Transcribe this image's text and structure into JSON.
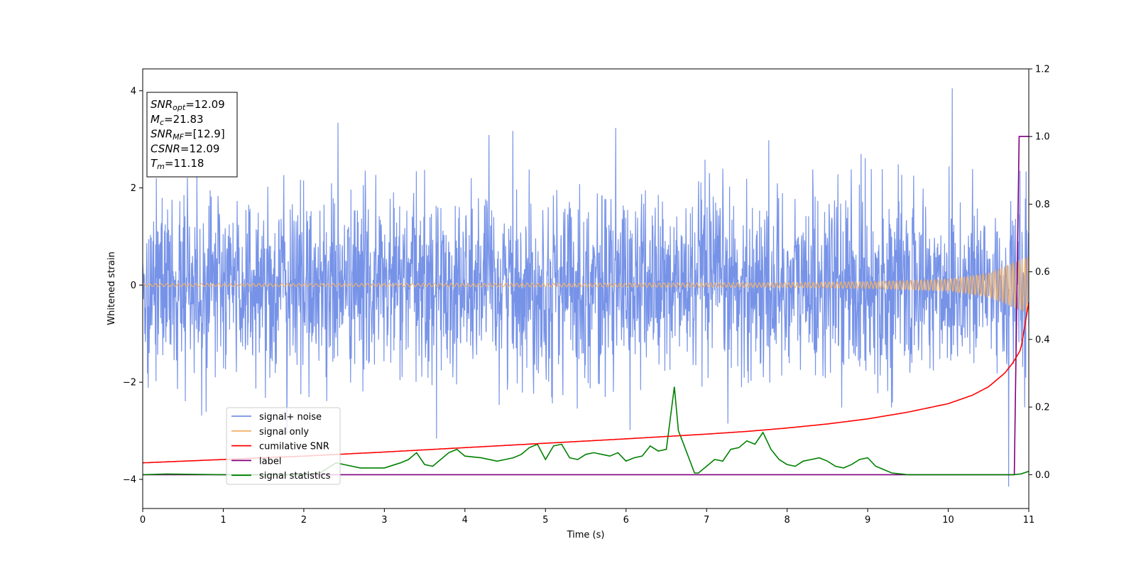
{
  "chart_data": {
    "type": "line",
    "title": "",
    "xlabel": "Time (s)",
    "ylabel": "Whitened strain",
    "xlim": [
      0,
      11
    ],
    "ylim": [
      -4.6,
      4.45
    ],
    "y2lim": [
      -0.1,
      1.2
    ],
    "x_ticks": [
      "0",
      "1",
      "2",
      "3",
      "4",
      "5",
      "6",
      "7",
      "8",
      "9",
      "10",
      "11"
    ],
    "y_ticks": [
      "−4",
      "−2",
      "0",
      "2",
      "4"
    ],
    "y2_ticks": [
      "0.0",
      "0.2",
      "0.4",
      "0.6",
      "0.8",
      "1.0",
      "1.2"
    ],
    "grid": false,
    "legend_position": "lower-left",
    "annotation_box": {
      "position": "top-left",
      "lines": [
        {
          "sym": "SNR",
          "sub": "opt",
          "val": "=12.09"
        },
        {
          "sym": "M",
          "sub": "c",
          "val": "=21.83"
        },
        {
          "sym": "SNR",
          "sub": "MF",
          "val": "=[12.9]"
        },
        {
          "sym": "CSNR",
          "sub": "",
          "val": "=12.09"
        },
        {
          "sym": "T",
          "sub": "m",
          "val": "=11.18"
        }
      ]
    },
    "series": [
      {
        "name": "signal+ noise",
        "color": "#7793e8",
        "axis": "left",
        "description_values": {
          "std": 0.95,
          "min": -4.15,
          "max": 4.05,
          "peak_time": 10.05
        }
      },
      {
        "name": "signal only",
        "color": "#f2b26b",
        "axis": "left",
        "envelope": {
          "x": [
            0,
            2,
            4,
            6,
            8,
            9,
            10,
            10.5,
            11
          ],
          "amplitude": [
            0.03,
            0.03,
            0.035,
            0.04,
            0.05,
            0.07,
            0.12,
            0.25,
            0.6
          ]
        }
      },
      {
        "name": "cumilative SNR",
        "color": "#ff0000",
        "axis": "right",
        "x": [
          0,
          1,
          2,
          3,
          4,
          5,
          6,
          7,
          7.5,
          8,
          8.5,
          9,
          9.5,
          10,
          10.3,
          10.5,
          10.7,
          10.8,
          10.9,
          11
        ],
        "y": [
          0.035,
          0.045,
          0.055,
          0.067,
          0.08,
          0.093,
          0.106,
          0.12,
          0.128,
          0.138,
          0.15,
          0.165,
          0.185,
          0.21,
          0.235,
          0.26,
          0.3,
          0.33,
          0.37,
          0.51
        ]
      },
      {
        "name": "label",
        "color": "#800080",
        "axis": "right",
        "x": [
          0,
          10.82,
          10.88,
          11
        ],
        "y": [
          0.0,
          0.0,
          1.0,
          1.0
        ]
      },
      {
        "name": "signal statistics",
        "color": "#008000",
        "axis": "right",
        "x": [
          0,
          0.3,
          1,
          2,
          2.2,
          2.4,
          2.5,
          2.7,
          3,
          3.2,
          3.3,
          3.4,
          3.5,
          3.6,
          3.8,
          3.9,
          4.0,
          4.2,
          4.4,
          4.5,
          4.6,
          4.7,
          4.8,
          4.9,
          5.0,
          5.1,
          5.2,
          5.3,
          5.4,
          5.5,
          5.6,
          5.7,
          5.8,
          5.9,
          6.0,
          6.1,
          6.2,
          6.3,
          6.4,
          6.5,
          6.6,
          6.65,
          6.7,
          6.85,
          6.9,
          7.0,
          7.1,
          7.2,
          7.3,
          7.4,
          7.5,
          7.6,
          7.7,
          7.8,
          7.9,
          8.0,
          8.1,
          8.2,
          8.3,
          8.4,
          8.5,
          8.6,
          8.7,
          8.8,
          8.9,
          9.0,
          9.1,
          9.2,
          9.3,
          9.5,
          10,
          10.5,
          10.8,
          10.9,
          11
        ],
        "y": [
          0.0,
          0.002,
          0.0,
          0.0,
          0.005,
          0.035,
          0.03,
          0.02,
          0.02,
          0.035,
          0.045,
          0.065,
          0.03,
          0.025,
          0.065,
          0.075,
          0.055,
          0.05,
          0.04,
          0.045,
          0.05,
          0.06,
          0.08,
          0.09,
          0.045,
          0.085,
          0.09,
          0.05,
          0.045,
          0.06,
          0.065,
          0.06,
          0.055,
          0.065,
          0.04,
          0.05,
          0.055,
          0.085,
          0.07,
          0.075,
          0.26,
          0.13,
          0.1,
          0.005,
          0.005,
          0.025,
          0.045,
          0.04,
          0.075,
          0.08,
          0.1,
          0.09,
          0.125,
          0.075,
          0.045,
          0.03,
          0.025,
          0.04,
          0.045,
          0.05,
          0.04,
          0.025,
          0.02,
          0.03,
          0.045,
          0.05,
          0.025,
          0.015,
          0.005,
          0.0,
          0.0,
          0.0,
          0.0,
          0.002,
          0.01
        ]
      }
    ]
  }
}
